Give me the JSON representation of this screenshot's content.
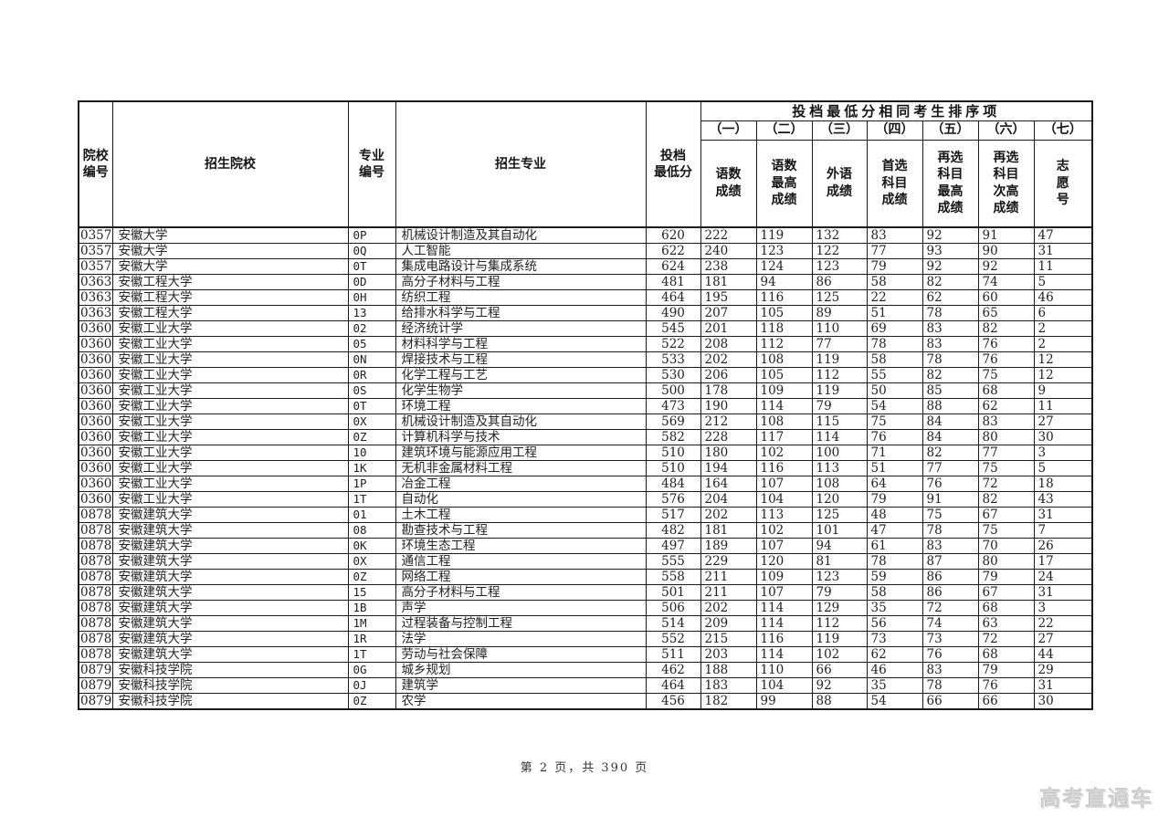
{
  "page": {
    "footer_text": "第 2 页，共 390 页",
    "watermark_text": "高考直通车"
  },
  "table": {
    "group_header": "投档最低分相同考生排序项",
    "columns": {
      "school_code": "院校\n编号",
      "school_name": "招生院校",
      "major_code": "专业\n编号",
      "major_name": "招生专业",
      "min_score": "投档\n最低分"
    },
    "rank_columns": [
      {
        "num": "（一）",
        "label": "语数\n成绩"
      },
      {
        "num": "（二）",
        "label": "语数\n最高\n成绩"
      },
      {
        "num": "（三）",
        "label": "外语\n成绩"
      },
      {
        "num": "（四）",
        "label": "首选\n科目\n成绩"
      },
      {
        "num": "（五）",
        "label": "再选\n科目\n最高\n成绩"
      },
      {
        "num": "（六）",
        "label": "再选\n科目\n次高\n成绩"
      },
      {
        "num": "（七）",
        "label": "志\n愿\n号"
      }
    ],
    "rows": [
      [
        "0357",
        "安徽大学",
        "0P",
        "机械设计制造及其自动化",
        "620",
        "222",
        "119",
        "132",
        "83",
        "92",
        "91",
        "47"
      ],
      [
        "0357",
        "安徽大学",
        "0Q",
        "人工智能",
        "622",
        "240",
        "123",
        "122",
        "77",
        "93",
        "90",
        "31"
      ],
      [
        "0357",
        "安徽大学",
        "0T",
        "集成电路设计与集成系统",
        "624",
        "238",
        "124",
        "123",
        "79",
        "92",
        "92",
        "11"
      ],
      [
        "0363",
        "安徽工程大学",
        "0D",
        "高分子材料与工程",
        "481",
        "181",
        "94",
        "86",
        "58",
        "82",
        "74",
        "5"
      ],
      [
        "0363",
        "安徽工程大学",
        "0H",
        "纺织工程",
        "464",
        "195",
        "116",
        "125",
        "22",
        "62",
        "60",
        "46"
      ],
      [
        "0363",
        "安徽工程大学",
        "13",
        "给排水科学与工程",
        "490",
        "207",
        "105",
        "89",
        "51",
        "78",
        "65",
        "6"
      ],
      [
        "0360",
        "安徽工业大学",
        "02",
        "经济统计学",
        "545",
        "201",
        "118",
        "110",
        "69",
        "83",
        "82",
        "2"
      ],
      [
        "0360",
        "安徽工业大学",
        "05",
        "材料科学与工程",
        "522",
        "208",
        "112",
        "77",
        "78",
        "83",
        "76",
        "2"
      ],
      [
        "0360",
        "安徽工业大学",
        "0N",
        "焊接技术与工程",
        "533",
        "202",
        "108",
        "119",
        "58",
        "78",
        "76",
        "12"
      ],
      [
        "0360",
        "安徽工业大学",
        "0R",
        "化学工程与工艺",
        "530",
        "206",
        "105",
        "112",
        "55",
        "82",
        "75",
        "12"
      ],
      [
        "0360",
        "安徽工业大学",
        "0S",
        "化学生物学",
        "500",
        "178",
        "109",
        "119",
        "50",
        "85",
        "68",
        "9"
      ],
      [
        "0360",
        "安徽工业大学",
        "0T",
        "环境工程",
        "473",
        "190",
        "114",
        "79",
        "54",
        "88",
        "62",
        "11"
      ],
      [
        "0360",
        "安徽工业大学",
        "0X",
        "机械设计制造及其自动化",
        "569",
        "212",
        "108",
        "115",
        "75",
        "84",
        "83",
        "27"
      ],
      [
        "0360",
        "安徽工业大学",
        "0Z",
        "计算机科学与技术",
        "582",
        "228",
        "117",
        "114",
        "76",
        "84",
        "80",
        "30"
      ],
      [
        "0360",
        "安徽工业大学",
        "10",
        "建筑环境与能源应用工程",
        "510",
        "180",
        "102",
        "100",
        "71",
        "82",
        "77",
        "3"
      ],
      [
        "0360",
        "安徽工业大学",
        "1K",
        "无机非金属材料工程",
        "510",
        "194",
        "116",
        "113",
        "51",
        "77",
        "75",
        "5"
      ],
      [
        "0360",
        "安徽工业大学",
        "1P",
        "冶金工程",
        "484",
        "164",
        "107",
        "108",
        "64",
        "76",
        "72",
        "18"
      ],
      [
        "0360",
        "安徽工业大学",
        "1T",
        "自动化",
        "576",
        "204",
        "104",
        "120",
        "79",
        "91",
        "82",
        "43"
      ],
      [
        "0878",
        "安徽建筑大学",
        "01",
        "土木工程",
        "517",
        "202",
        "113",
        "125",
        "48",
        "75",
        "67",
        "31"
      ],
      [
        "0878",
        "安徽建筑大学",
        "08",
        "勘查技术与工程",
        "482",
        "181",
        "102",
        "101",
        "47",
        "78",
        "75",
        "7"
      ],
      [
        "0878",
        "安徽建筑大学",
        "0K",
        "环境生态工程",
        "497",
        "189",
        "107",
        "94",
        "61",
        "83",
        "70",
        "26"
      ],
      [
        "0878",
        "安徽建筑大学",
        "0X",
        "通信工程",
        "555",
        "229",
        "120",
        "81",
        "78",
        "87",
        "80",
        "17"
      ],
      [
        "0878",
        "安徽建筑大学",
        "0Z",
        "网络工程",
        "558",
        "211",
        "109",
        "123",
        "59",
        "86",
        "79",
        "24"
      ],
      [
        "0878",
        "安徽建筑大学",
        "15",
        "高分子材料与工程",
        "501",
        "211",
        "107",
        "79",
        "58",
        "86",
        "67",
        "31"
      ],
      [
        "0878",
        "安徽建筑大学",
        "1B",
        "声学",
        "506",
        "202",
        "114",
        "129",
        "35",
        "72",
        "68",
        "3"
      ],
      [
        "0878",
        "安徽建筑大学",
        "1M",
        "过程装备与控制工程",
        "514",
        "209",
        "114",
        "112",
        "56",
        "74",
        "63",
        "22"
      ],
      [
        "0878",
        "安徽建筑大学",
        "1R",
        "法学",
        "552",
        "215",
        "116",
        "119",
        "73",
        "73",
        "72",
        "27"
      ],
      [
        "0878",
        "安徽建筑大学",
        "1T",
        "劳动与社会保障",
        "511",
        "203",
        "114",
        "102",
        "62",
        "76",
        "68",
        "44"
      ],
      [
        "0879",
        "安徽科技学院",
        "0G",
        "城乡规划",
        "462",
        "188",
        "110",
        "66",
        "46",
        "83",
        "79",
        "29"
      ],
      [
        "0879",
        "安徽科技学院",
        "0J",
        "建筑学",
        "464",
        "183",
        "104",
        "92",
        "35",
        "78",
        "76",
        "31"
      ],
      [
        "0879",
        "安徽科技学院",
        "0Z",
        "农学",
        "456",
        "182",
        "99",
        "88",
        "54",
        "66",
        "66",
        "30"
      ]
    ]
  }
}
